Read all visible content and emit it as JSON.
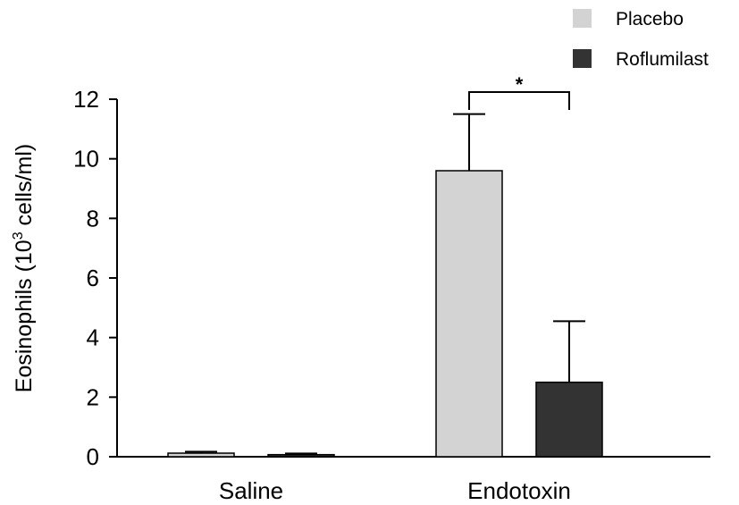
{
  "chart_data": {
    "type": "bar",
    "title": "",
    "xlabel": "",
    "ylabel": "Eosinophils (10",
    "ylabel_superscript": "3",
    "ylabel_suffix": " cells/ml)",
    "ylim": [
      0,
      12
    ],
    "yticks": [
      "0",
      "2",
      "4",
      "6",
      "8",
      "10",
      "12"
    ],
    "categories": [
      "Saline",
      "Endotoxin"
    ],
    "series": [
      {
        "name": "Placebo",
        "color": "#d3d3d3",
        "values": [
          0.12,
          9.6
        ],
        "errors": [
          0.05,
          1.9
        ]
      },
      {
        "name": "Roflumilast",
        "color": "#333333",
        "values": [
          0.07,
          2.5
        ],
        "errors": [
          0.04,
          2.05
        ]
      }
    ],
    "legend_position": "top-right",
    "grid": false,
    "significance": {
      "label": "*",
      "category": "Endotoxin",
      "between": [
        "Placebo",
        "Roflumilast"
      ]
    }
  }
}
